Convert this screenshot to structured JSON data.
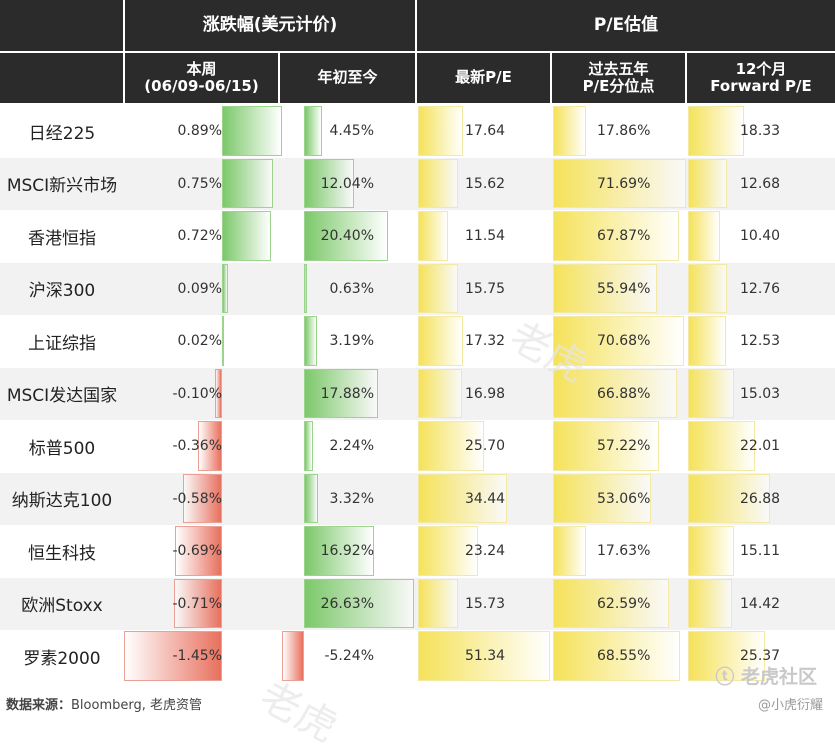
{
  "headers": {
    "group_change": "涨跌幅(美元计价)",
    "group_pe": "P/E估值",
    "col_week_line1": "本周",
    "col_week_line2": "(06/09-06/15)",
    "col_ytd": "年初至今",
    "col_latest_pe": "最新P/E",
    "col_pe5y_line1": "过去五年",
    "col_pe5y_line2": "P/E分位点",
    "col_fwd_line1": "12个月",
    "col_fwd_line2": "Forward P/E"
  },
  "chart_data": {
    "type": "table",
    "rows": [
      {
        "name": "日经225",
        "week": 0.89,
        "ytd": 4.45,
        "latest_pe": 17.64,
        "pe_pct": 17.86,
        "fwd_pe": 18.33
      },
      {
        "name": "MSCI新兴市场",
        "week": 0.75,
        "ytd": 12.04,
        "latest_pe": 15.62,
        "pe_pct": 71.69,
        "fwd_pe": 12.68
      },
      {
        "name": "香港恒指",
        "week": 0.72,
        "ytd": 20.4,
        "latest_pe": 11.54,
        "pe_pct": 67.87,
        "fwd_pe": 10.4
      },
      {
        "name": "沪深300",
        "week": 0.09,
        "ytd": 0.63,
        "latest_pe": 15.75,
        "pe_pct": 55.94,
        "fwd_pe": 12.76
      },
      {
        "name": "上证综指",
        "week": 0.02,
        "ytd": 3.19,
        "latest_pe": 17.32,
        "pe_pct": 70.68,
        "fwd_pe": 12.53
      },
      {
        "name": "MSCI发达国家",
        "week": -0.1,
        "ytd": 17.88,
        "latest_pe": 16.98,
        "pe_pct": 66.88,
        "fwd_pe": 15.03
      },
      {
        "name": "标普500",
        "week": -0.36,
        "ytd": 2.24,
        "latest_pe": 25.7,
        "pe_pct": 57.22,
        "fwd_pe": 22.01
      },
      {
        "name": "纳斯达克100",
        "week": -0.58,
        "ytd": 3.32,
        "latest_pe": 34.44,
        "pe_pct": 53.06,
        "fwd_pe": 26.88
      },
      {
        "name": "恒生科技",
        "week": -0.69,
        "ytd": 16.92,
        "latest_pe": 23.24,
        "pe_pct": 17.63,
        "fwd_pe": 15.11
      },
      {
        "name": "欧洲Stoxx",
        "week": -0.71,
        "ytd": 26.63,
        "latest_pe": 15.73,
        "pe_pct": 62.59,
        "fwd_pe": 14.42
      },
      {
        "name": "罗素2000",
        "week": -1.45,
        "ytd": -5.24,
        "latest_pe": 51.34,
        "pe_pct": 68.55,
        "fwd_pe": 25.37
      }
    ]
  },
  "colors": {
    "header_bg": "#2b2b2b",
    "positive": "#7cc86a",
    "negative": "#e8705e",
    "pe": "#f5e25a",
    "row_alt": "#f2f2f2"
  },
  "footer": {
    "source_label": "数据来源：",
    "source_text": "Bloomberg, 老虎资管",
    "brand": "老虎社区",
    "handle": "@小虎衍耀"
  }
}
